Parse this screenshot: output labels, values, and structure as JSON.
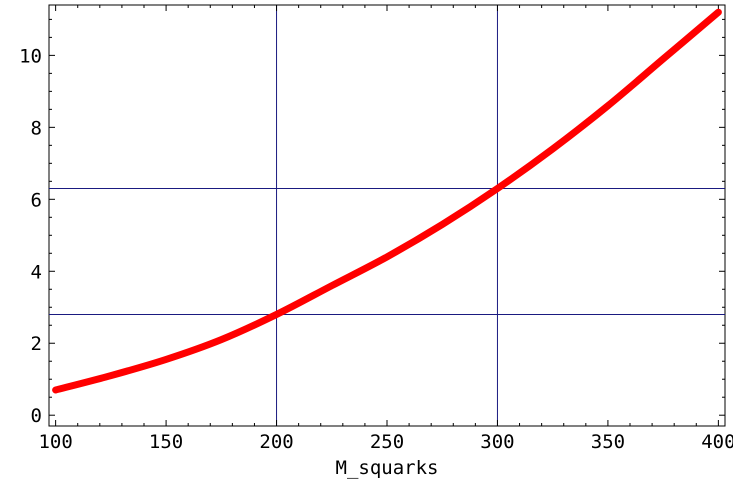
{
  "chart_data": {
    "type": "line",
    "title": "",
    "xlabel": "M_squarks",
    "ylabel": "",
    "xlim": [
      97,
      403
    ],
    "ylim": [
      -0.3,
      11.4
    ],
    "x_ticks": [
      100,
      150,
      200,
      250,
      300,
      350,
      400
    ],
    "x_tick_labels": [
      "100",
      "150",
      "200",
      "250",
      "300",
      "350",
      "400"
    ],
    "y_ticks": [
      0,
      2,
      4,
      6,
      8,
      10
    ],
    "y_tick_labels": [
      "0",
      "2",
      "4",
      "6",
      "8",
      "10"
    ],
    "grid": false,
    "reference_lines": {
      "vertical": [
        200,
        300
      ],
      "horizontal": [
        2.8,
        6.3
      ],
      "color": "#1a1a80"
    },
    "series": [
      {
        "color": "#ff0000",
        "x": [
          100,
          125,
          150,
          175,
          200,
          225,
          250,
          275,
          300,
          325,
          350,
          375,
          400
        ],
        "y": [
          0.7,
          1.1,
          1.55,
          2.1,
          2.8,
          3.6,
          4.4,
          5.3,
          6.3,
          7.4,
          8.6,
          9.9,
          11.2
        ]
      }
    ]
  }
}
